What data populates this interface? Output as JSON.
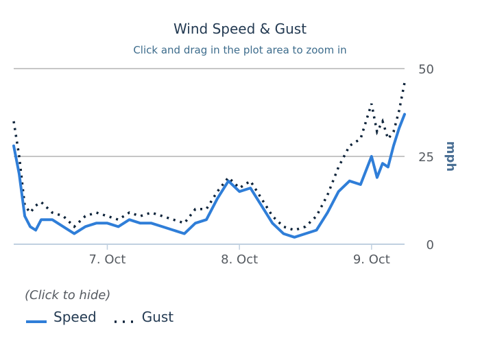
{
  "chart_data": {
    "type": "line",
    "title": "Wind Speed & Gust",
    "subtitle": "Click and drag in the plot area to zoom in",
    "ylabel": "mph",
    "y_axis_position": "right",
    "ylim": [
      0,
      50
    ],
    "yticks": [
      "0",
      "25",
      "50"
    ],
    "xlim": [
      "2016-10-06T07:00",
      "2016-10-09T06:00"
    ],
    "xticks": [
      {
        "label": "7. Oct",
        "x": "2016-10-07T00:00"
      },
      {
        "label": "8. Oct",
        "x": "2016-10-08T00:00"
      },
      {
        "label": "9. Oct",
        "x": "2016-10-09T00:00"
      }
    ],
    "grid": true,
    "legend_position": "bottom-left",
    "legend_hint": "(Click to hide)",
    "series": [
      {
        "name": "Speed",
        "style": "solid",
        "color": "#2f7ed8",
        "x": [
          "2016-10-06T07:00",
          "2016-10-06T08:00",
          "2016-10-06T09:00",
          "2016-10-06T10:00",
          "2016-10-06T11:00",
          "2016-10-06T12:00",
          "2016-10-06T14:00",
          "2016-10-06T16:00",
          "2016-10-06T18:00",
          "2016-10-06T20:00",
          "2016-10-06T22:00",
          "2016-10-07T00:00",
          "2016-10-07T02:00",
          "2016-10-07T04:00",
          "2016-10-07T06:00",
          "2016-10-07T08:00",
          "2016-10-07T10:00",
          "2016-10-07T12:00",
          "2016-10-07T14:00",
          "2016-10-07T16:00",
          "2016-10-07T18:00",
          "2016-10-07T20:00",
          "2016-10-07T22:00",
          "2016-10-08T00:00",
          "2016-10-08T02:00",
          "2016-10-08T04:00",
          "2016-10-08T06:00",
          "2016-10-08T08:00",
          "2016-10-08T10:00",
          "2016-10-08T12:00",
          "2016-10-08T14:00",
          "2016-10-08T16:00",
          "2016-10-08T18:00",
          "2016-10-08T20:00",
          "2016-10-08T22:00",
          "2016-10-09T00:00",
          "2016-10-09T01:00",
          "2016-10-09T02:00",
          "2016-10-09T03:00",
          "2016-10-09T04:00",
          "2016-10-09T05:00",
          "2016-10-09T06:00"
        ],
        "values": [
          28,
          20,
          8,
          5,
          4,
          7,
          7,
          5,
          3,
          5,
          6,
          6,
          5,
          7,
          6,
          6,
          5,
          4,
          3,
          6,
          7,
          13,
          18,
          15,
          16,
          11,
          6,
          3,
          2,
          3,
          4,
          9,
          15,
          18,
          17,
          25,
          19,
          23,
          22,
          28,
          33,
          37
        ]
      },
      {
        "name": "Gust",
        "style": "dotted",
        "color": "#0d233a",
        "x": [
          "2016-10-06T07:00",
          "2016-10-06T08:00",
          "2016-10-06T09:00",
          "2016-10-06T10:00",
          "2016-10-06T11:00",
          "2016-10-06T12:00",
          "2016-10-06T14:00",
          "2016-10-06T16:00",
          "2016-10-06T18:00",
          "2016-10-06T20:00",
          "2016-10-06T22:00",
          "2016-10-07T00:00",
          "2016-10-07T02:00",
          "2016-10-07T04:00",
          "2016-10-07T06:00",
          "2016-10-07T08:00",
          "2016-10-07T10:00",
          "2016-10-07T12:00",
          "2016-10-07T14:00",
          "2016-10-07T16:00",
          "2016-10-07T18:00",
          "2016-10-07T20:00",
          "2016-10-07T22:00",
          "2016-10-08T00:00",
          "2016-10-08T02:00",
          "2016-10-08T04:00",
          "2016-10-08T06:00",
          "2016-10-08T08:00",
          "2016-10-08T10:00",
          "2016-10-08T12:00",
          "2016-10-08T14:00",
          "2016-10-08T16:00",
          "2016-10-08T18:00",
          "2016-10-08T20:00",
          "2016-10-08T22:00",
          "2016-10-09T00:00",
          "2016-10-09T01:00",
          "2016-10-09T02:00",
          "2016-10-09T03:00",
          "2016-10-09T04:00",
          "2016-10-09T05:00",
          "2016-10-09T06:00"
        ],
        "values": [
          35,
          25,
          11,
          9,
          11,
          12,
          9,
          8,
          5,
          8,
          9,
          8,
          7,
          9,
          8,
          9,
          8,
          7,
          6,
          10,
          10,
          15,
          19,
          16,
          18,
          13,
          8,
          5,
          4,
          5,
          8,
          14,
          22,
          28,
          30,
          40,
          32,
          35,
          30,
          32,
          38,
          46
        ]
      }
    ]
  }
}
